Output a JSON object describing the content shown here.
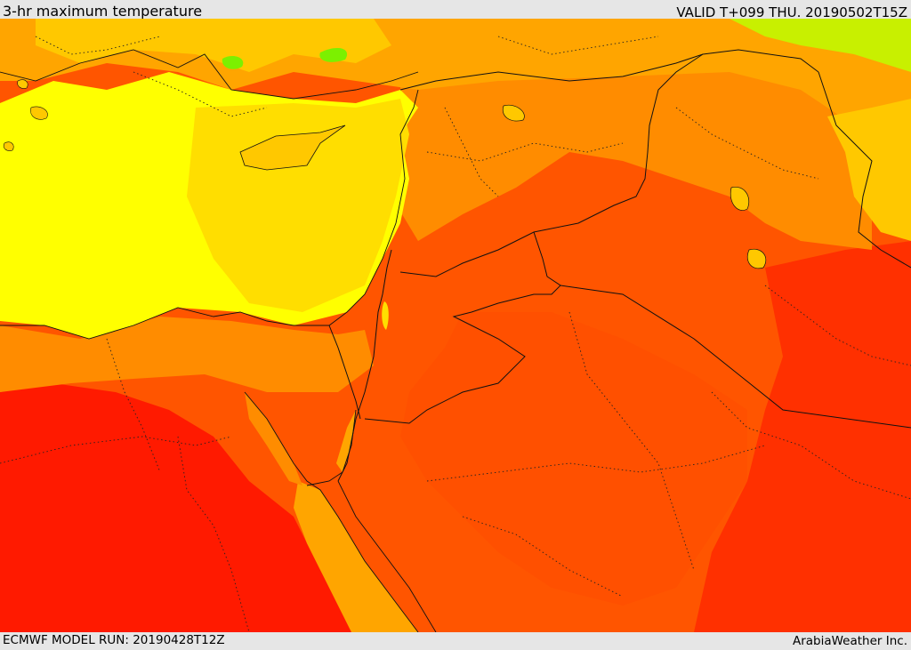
{
  "header": {
    "title": "3-hr maximum temperature",
    "valid": "VALID T+099 THU. 20190502T15Z"
  },
  "footer": {
    "model_run": "ECMWF MODEL RUN: 20190428T12Z",
    "credit": "ArabiaWeather Inc."
  },
  "colors": {
    "background": "#e6e6e6",
    "very_hot": "#ff1a00",
    "hot": "#ff3a00",
    "warm_hot": "#ff5500",
    "warm": "#ff7f00",
    "mild_warm": "#ffa500",
    "mild": "#ffc800",
    "cool_mild": "#ffde00",
    "sea": "#ffff00",
    "cool": "#c8f000",
    "cooler": "#7cf000",
    "coolest": "#3cd040",
    "border": "#111111"
  }
}
